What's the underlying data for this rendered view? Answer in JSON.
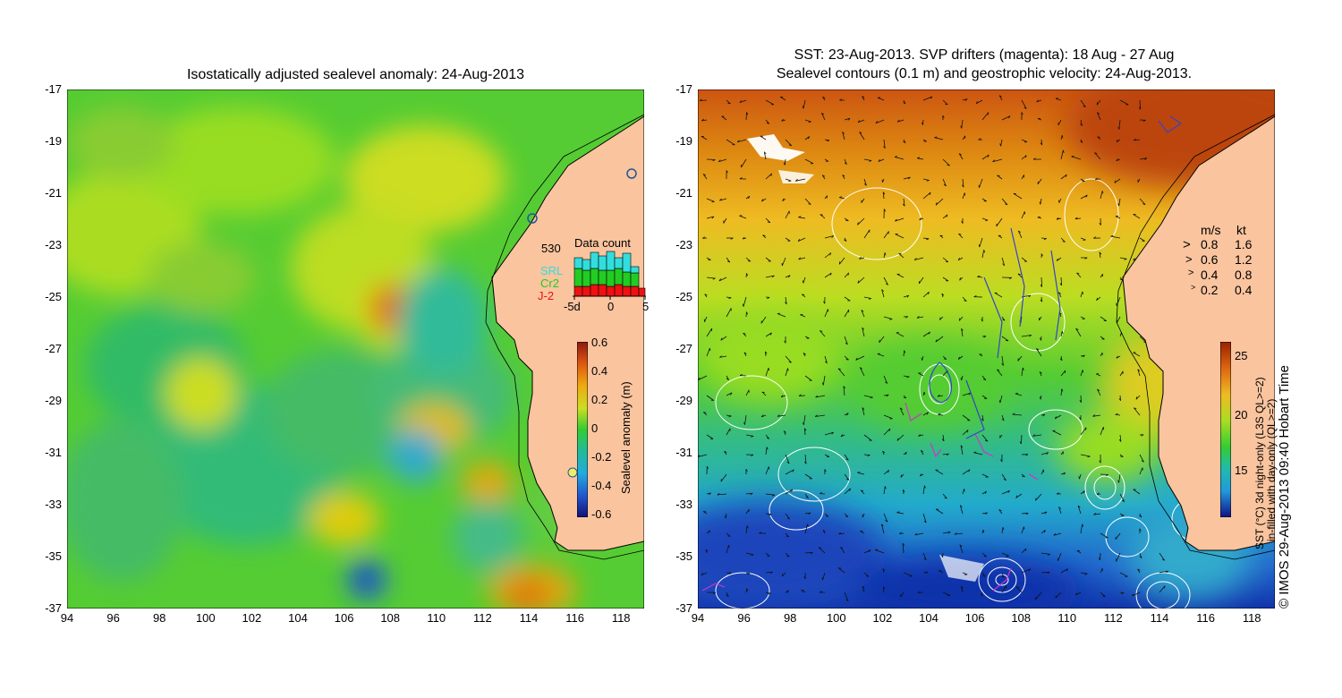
{
  "left_panel": {
    "title": "Isostatically adjusted sealevel anomaly: 24-Aug-2013",
    "colorbar": {
      "label": "Sealevel anomaly (m)",
      "ticks": [
        "0.6",
        "0.4",
        "0.2",
        "0",
        "-0.2",
        "-0.4",
        "-0.6"
      ]
    },
    "data_count": {
      "title": "Data count",
      "max_label": "530",
      "legend": [
        {
          "name": "SRL",
          "color": "#33dddd"
        },
        {
          "name": "Cr2",
          "color": "#22cc22"
        },
        {
          "name": "J-2",
          "color": "#ee1111"
        }
      ],
      "x_ticks": [
        "-5d",
        "0",
        "5"
      ]
    }
  },
  "right_panel": {
    "title_line1": "SST: 23-Aug-2013. SVP drifters (magenta): 18 Aug - 27 Aug",
    "title_line2": "Sealevel contours (0.1 m) and geostrophic velocity: 24-Aug-2013.",
    "speed_legend": {
      "header_ms": "m/s",
      "header_kt": "kt",
      "rows": [
        {
          "ms": "0.8",
          "kt": "1.6"
        },
        {
          "ms": "0.6",
          "kt": "1.2"
        },
        {
          "ms": "0.4",
          "kt": "0.8"
        },
        {
          "ms": "0.2",
          "kt": "0.4"
        }
      ]
    },
    "colorbar": {
      "label_line1": "SST (°C) 3d night-only (L3S QL>=2)",
      "label_line2": "in-filled with day-only (QL>=2)",
      "ticks": [
        "25",
        "20",
        "15"
      ]
    },
    "credit": "© IMOS 29-Aug-2013 09:40 Hobart Time"
  },
  "axes": {
    "y_ticks": [
      "-17",
      "-19",
      "-21",
      "-23",
      "-25",
      "-27",
      "-29",
      "-31",
      "-33",
      "-35",
      "-37"
    ],
    "x_ticks": [
      "94",
      "96",
      "98",
      "100",
      "102",
      "104",
      "106",
      "108",
      "110",
      "112",
      "114",
      "116",
      "118"
    ]
  },
  "colors": {
    "land": "#f9c49e",
    "coastline": "#000000",
    "contour": "#ffffff",
    "drifter": "#cc33cc"
  }
}
